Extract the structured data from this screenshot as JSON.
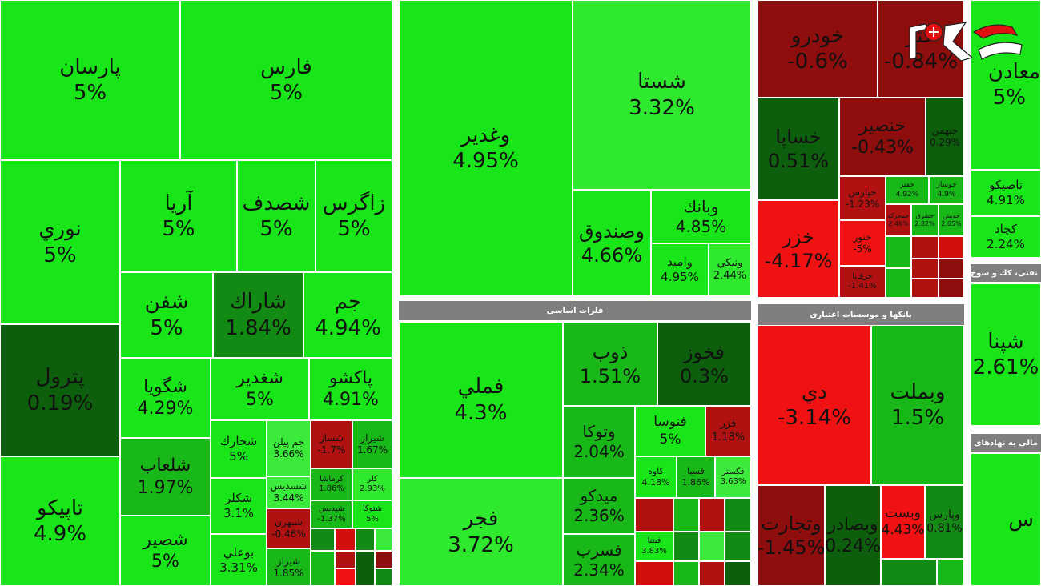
{
  "tiles": [
    {
      "sym": "پارسان",
      "pct": "5%"
    },
    {
      "sym": "فارس",
      "pct": "5%"
    },
    {
      "sym": "نوري",
      "pct": "5%"
    },
    {
      "sym": "آريا",
      "pct": "5%"
    },
    {
      "sym": "شصدف",
      "pct": "5%"
    },
    {
      "sym": "زاگرس",
      "pct": "5%"
    },
    {
      "sym": "پترول",
      "pct": "0.19%"
    },
    {
      "sym": "شفن",
      "pct": "5%"
    },
    {
      "sym": "شاراك",
      "pct": "1.84%"
    },
    {
      "sym": "جم",
      "pct": "4.94%"
    },
    {
      "sym": "تاپيكو",
      "pct": "4.9%"
    },
    {
      "sym": "شگويا",
      "pct": "4.29%"
    },
    {
      "sym": "شغدير",
      "pct": "5%"
    },
    {
      "sym": "پاكشو",
      "pct": "4.91%"
    },
    {
      "sym": "شلعاب",
      "pct": "1.97%"
    },
    {
      "sym": "شصير",
      "pct": "5%"
    },
    {
      "sym": "شخارك",
      "pct": "5%"
    },
    {
      "sym": "شكلر",
      "pct": "3.1%"
    },
    {
      "sym": "بوعلي",
      "pct": "3.31%"
    },
    {
      "sym": "جم پيلن",
      "pct": "3.66%"
    },
    {
      "sym": "شسديس",
      "pct": "3.44%"
    },
    {
      "sym": "شبهرن",
      "pct": "-0.46%"
    },
    {
      "sym": "شيراز",
      "pct": "1.85%"
    },
    {
      "sym": "شساز",
      "pct": "-1.7%"
    },
    {
      "sym": "كرماشا",
      "pct": "1.86%"
    },
    {
      "sym": "شپديس",
      "pct": "-1.37%"
    },
    {
      "sym": "شيراز",
      "pct": "1.67%"
    },
    {
      "sym": "كلر",
      "pct": "2.93%"
    },
    {
      "sym": "شتوكا",
      "pct": "5%"
    },
    {
      "sym": "وغدير",
      "pct": "4.95%"
    },
    {
      "sym": "شستا",
      "pct": "3.32%"
    },
    {
      "sym": "وصندوق",
      "pct": "4.66%"
    },
    {
      "sym": "وبانك",
      "pct": "4.85%"
    },
    {
      "sym": "واميد",
      "pct": "4.95%"
    },
    {
      "sym": "ونيكي",
      "pct": "2.44%"
    },
    {
      "sym": "فملي",
      "pct": "4.3%"
    },
    {
      "sym": "فجر",
      "pct": "3.72%"
    },
    {
      "sym": "ذوب",
      "pct": "1.51%"
    },
    {
      "sym": "فخوز",
      "pct": "0.3%"
    },
    {
      "sym": "وتوكا",
      "pct": "2.04%"
    },
    {
      "sym": "فنوسا",
      "pct": "5%"
    },
    {
      "sym": "فزر",
      "pct": "1.18%"
    },
    {
      "sym": "ميدكو",
      "pct": "2.36%"
    },
    {
      "sym": "كاوه",
      "pct": "4.18%"
    },
    {
      "sym": "فسبا",
      "pct": "1.86%"
    },
    {
      "sym": "فگستر",
      "pct": "3.63%"
    },
    {
      "sym": "فسرب",
      "pct": "2.34%"
    },
    {
      "sym": "فيتنا",
      "pct": "3.83%"
    },
    {
      "sym": "خودرو",
      "pct": "-0.6%"
    },
    {
      "sym": "ختر",
      "pct": "-0.84%"
    },
    {
      "sym": "خساپا",
      "pct": "0.51%"
    },
    {
      "sym": "خنصير",
      "pct": "-0.43%"
    },
    {
      "sym": "خبهمن",
      "pct": "0.29%"
    },
    {
      "sym": "خفنر",
      "pct": "4.92%"
    },
    {
      "sym": "خوساز",
      "pct": "4.9%"
    },
    {
      "sym": "خزر",
      "pct": "-4.17%"
    },
    {
      "sym": "خپارس",
      "pct": "-1.23%"
    },
    {
      "sym": "خنور",
      "pct": "-5%"
    },
    {
      "sym": "خرقايا",
      "pct": "-1.41%"
    },
    {
      "sym": "خمحركه",
      "pct": "2.46%"
    },
    {
      "sym": "خشرق",
      "pct": "2.82%"
    },
    {
      "sym": "خوبش",
      "pct": "2.65%"
    },
    {
      "sym": "دي",
      "pct": "-3.14%"
    },
    {
      "sym": "وبملت",
      "pct": "1.5%"
    },
    {
      "sym": "وتجارت",
      "pct": "-1.45%"
    },
    {
      "sym": "وبصادر",
      "pct": "0.24%"
    },
    {
      "sym": "وبست",
      "pct": "4.43%"
    },
    {
      "sym": "وپارس",
      "pct": "0.81%"
    },
    {
      "sym": "معادن",
      "pct": "5%"
    },
    {
      "sym": "تاصيكو",
      "pct": "4.91%"
    },
    {
      "sym": "كچاد",
      "pct": "2.24%"
    },
    {
      "sym": "شپنا",
      "pct": "2.61%"
    },
    {
      "sym": "س",
      "pct": ""
    }
  ],
  "headers": {
    "metals": "فلزات اساسی",
    "banks": "بانكها و موسسات اعتباری",
    "oil": "نفتی، كك و سوخ",
    "holdings": "مالی به نهادهای ما"
  },
  "logo_name": "rokna-logo",
  "colors": {
    "bright_green": "#19e619",
    "dark_green": "#0d5e0d",
    "red": "#f01212",
    "dark_red": "#8e0d0d",
    "header_gray": "#7f7f7f"
  }
}
